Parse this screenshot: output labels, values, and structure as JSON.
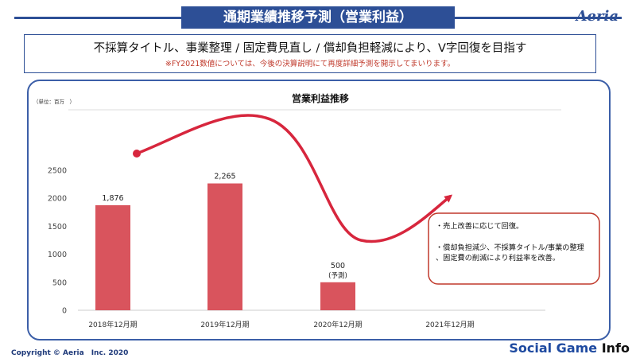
{
  "header": {
    "title": "通期業績推移予測（営業利益）",
    "logo": "Aeria"
  },
  "subtitle": {
    "headline": "不採算タイトル、事業整理 / 固定費見直し / 償却負担軽減により、V字回復を目指す",
    "note": "※FY2021数値については、今後の決算説明にて再度詳細予測を開示してまいります。"
  },
  "chart_data": {
    "type": "bar",
    "title": "営業利益推移",
    "unit_label": "（単位：百万　）",
    "categories": [
      "2018年12月期",
      "2019年12月期",
      "2020年12月期",
      "2021年12月期"
    ],
    "values": [
      1876,
      2265,
      500,
      null
    ],
    "value_labels": [
      "1,876",
      "2,265",
      "500",
      ""
    ],
    "value_sublabels": [
      "",
      "",
      "(予測)",
      ""
    ],
    "yticks": [
      0,
      500,
      1000,
      1500,
      2000,
      2500
    ],
    "ylim": [
      0,
      2700
    ],
    "bar_color": "#d9545d",
    "trend_color": "#d7263d",
    "grid": false,
    "callout": {
      "line1": "・売上改善に応じて回復。",
      "line2": "・償却負担減少、不採算タイトル/事業の整理、固定費の削減により利益率を改善。"
    }
  },
  "footer": {
    "copyright": "Copyright © Aeria　Inc. 2020",
    "watermark_part1": "Social Game ",
    "watermark_part2": "Info"
  },
  "colors": {
    "brand_blue": "#2d4f96",
    "bar": "#d9545d",
    "accent_red": "#d7263d"
  }
}
